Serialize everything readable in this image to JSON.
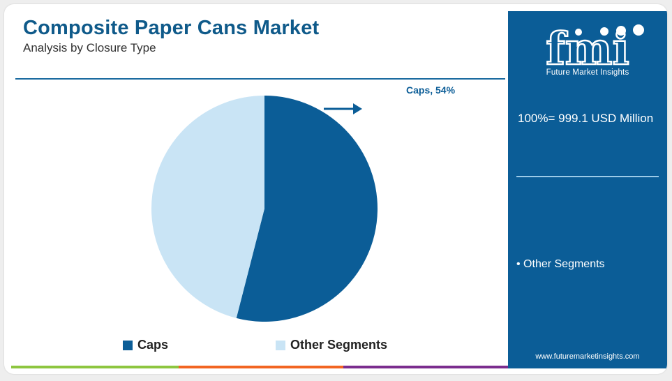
{
  "header": {
    "title": "Composite Paper Cans Market",
    "subtitle": "Analysis by Closure Type"
  },
  "sidebar": {
    "logo_letters": "fmi",
    "logo_text": "Future Market Insights",
    "total": "100%= 999.1 USD Million",
    "items": [
      "• Other Segments"
    ],
    "website": "www.futuremarketinsights.com"
  },
  "colors": {
    "brand_blue": "#0b5d97",
    "light_blue": "#c9e4f5",
    "bar_green": "#8dc63f",
    "bar_orange": "#f26522",
    "bar_purple": "#7b2d8e"
  },
  "chart_data": {
    "type": "pie",
    "categories": [
      "Caps",
      "Other Segments"
    ],
    "values": [
      54,
      46
    ],
    "colors": [
      "#0b5d97",
      "#c9e4f5"
    ],
    "callout": "Caps, 54%",
    "legend": "bottom"
  }
}
